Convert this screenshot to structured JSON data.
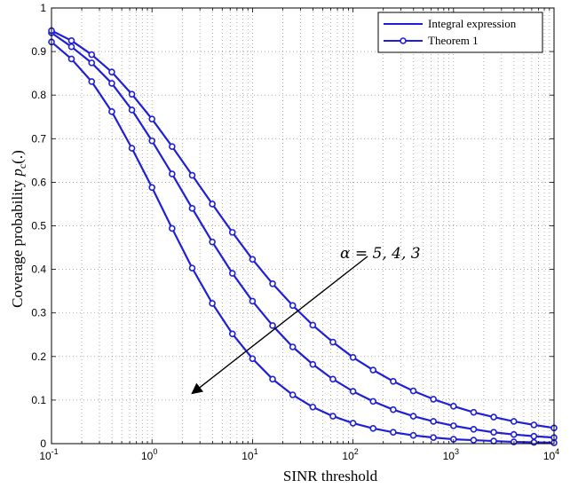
{
  "chart_data": {
    "type": "line",
    "xscale": "log",
    "xlabel": "SINR threshold",
    "ylabel": "Coverage probability p_c(.)",
    "ylabel_main": "Coverage probability ",
    "ylabel_var": "p",
    "ylabel_sub": "c",
    "ylabel_tail": "(.)",
    "xlim": [
      0.1,
      10000
    ],
    "ylim": [
      0,
      1
    ],
    "x_ticks": [
      {
        "value": 0.1,
        "base": "10",
        "exp": "-1"
      },
      {
        "value": 1,
        "base": "10",
        "exp": "0"
      },
      {
        "value": 10,
        "base": "10",
        "exp": "1"
      },
      {
        "value": 100,
        "base": "10",
        "exp": "2"
      },
      {
        "value": 1000,
        "base": "10",
        "exp": "3"
      },
      {
        "value": 10000,
        "base": "10",
        "exp": "4"
      }
    ],
    "y_ticks": [
      {
        "value": 0,
        "label": "0"
      },
      {
        "value": 0.1,
        "label": "0.1"
      },
      {
        "value": 0.2,
        "label": "0.2"
      },
      {
        "value": 0.3,
        "label": "0.3"
      },
      {
        "value": 0.4,
        "label": "0.4"
      },
      {
        "value": 0.5,
        "label": "0.5"
      },
      {
        "value": 0.6,
        "label": "0.6"
      },
      {
        "value": 0.7,
        "label": "0.7"
      },
      {
        "value": 0.8,
        "label": "0.8"
      },
      {
        "value": 0.9,
        "label": "0.9"
      },
      {
        "value": 1,
        "label": "1"
      }
    ],
    "grid": true,
    "legend": {
      "position": "top-right",
      "entries": [
        "Integral expression",
        "Theorem 1"
      ]
    },
    "annotation": {
      "text": "α = 5, 4, 3",
      "arrow_from": [
        140,
        0.43
      ],
      "arrow_to": [
        2.5,
        0.115
      ]
    },
    "color": "#1f1fd6",
    "x": [
      0.1,
      0.158,
      0.251,
      0.398,
      0.631,
      1,
      1.585,
      2.512,
      3.981,
      6.31,
      10,
      15.85,
      25.12,
      39.81,
      63.1,
      100,
      158.5,
      251.2,
      398.1,
      631,
      1000,
      1585,
      2512,
      3981,
      6310,
      10000
    ],
    "series": [
      {
        "alpha": 5,
        "values": [
          0.922,
          0.883,
          0.831,
          0.762,
          0.678,
          0.588,
          0.494,
          0.403,
          0.322,
          0.252,
          0.195,
          0.148,
          0.112,
          0.084,
          0.063,
          0.047,
          0.035,
          0.026,
          0.019,
          0.014,
          0.01,
          0.008,
          0.006,
          0.004,
          0.003,
          0.002
        ]
      },
      {
        "alpha": 4,
        "values": [
          0.943,
          0.911,
          0.874,
          0.827,
          0.766,
          0.695,
          0.619,
          0.54,
          0.463,
          0.391,
          0.327,
          0.271,
          0.222,
          0.182,
          0.148,
          0.12,
          0.097,
          0.078,
          0.063,
          0.051,
          0.041,
          0.033,
          0.026,
          0.021,
          0.017,
          0.014
        ]
      },
      {
        "alpha": 3,
        "values": [
          0.948,
          0.925,
          0.893,
          0.853,
          0.802,
          0.745,
          0.682,
          0.616,
          0.55,
          0.485,
          0.423,
          0.367,
          0.317,
          0.272,
          0.233,
          0.198,
          0.169,
          0.143,
          0.121,
          0.102,
          0.086,
          0.072,
          0.061,
          0.051,
          0.043,
          0.036
        ]
      }
    ]
  }
}
